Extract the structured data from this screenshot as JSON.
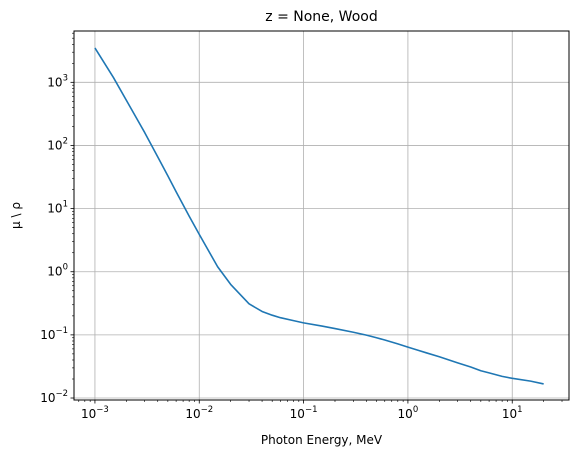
{
  "chart_data": {
    "type": "line",
    "title": "z = None, Wood",
    "xlabel": "Photon Energy, MeV",
    "ylabel": "μ \\ ρ",
    "xscale": "log",
    "yscale": "log",
    "xlim": [
      0.00063,
      35
    ],
    "ylim": [
      0.0093,
      6500
    ],
    "grid": true,
    "x_ticks": [
      {
        "value": 0.001,
        "mantissa": "10",
        "exp": "−3"
      },
      {
        "value": 0.01,
        "mantissa": "10",
        "exp": "−2"
      },
      {
        "value": 0.1,
        "mantissa": "10",
        "exp": "−1"
      },
      {
        "value": 1,
        "mantissa": "10",
        "exp": "0"
      },
      {
        "value": 10,
        "mantissa": "10",
        "exp": "1"
      }
    ],
    "y_ticks": [
      {
        "value": 0.01,
        "mantissa": "10",
        "exp": "−2"
      },
      {
        "value": 0.1,
        "mantissa": "10",
        "exp": "−1"
      },
      {
        "value": 1,
        "mantissa": "10",
        "exp": "0"
      },
      {
        "value": 10,
        "mantissa": "10",
        "exp": "1"
      },
      {
        "value": 100,
        "mantissa": "10",
        "exp": "2"
      },
      {
        "value": 1000,
        "mantissa": "10",
        "exp": "3"
      }
    ],
    "series": [
      {
        "color": "#1f77b4",
        "x": [
          0.001,
          0.0015,
          0.002,
          0.003,
          0.004,
          0.005,
          0.006,
          0.008,
          0.01,
          0.015,
          0.02,
          0.03,
          0.04,
          0.05,
          0.06,
          0.08,
          0.1,
          0.15,
          0.2,
          0.3,
          0.4,
          0.5,
          0.6,
          0.8,
          1,
          1.25,
          1.5,
          2,
          3,
          4,
          5,
          6,
          8,
          10,
          15,
          20
        ],
        "y": [
          3500,
          1200,
          520,
          160,
          66,
          33,
          18.5,
          7.6,
          3.9,
          1.2,
          0.63,
          0.31,
          0.235,
          0.205,
          0.187,
          0.168,
          0.155,
          0.138,
          0.126,
          0.11,
          0.099,
          0.09,
          0.083,
          0.072,
          0.064,
          0.057,
          0.052,
          0.045,
          0.036,
          0.031,
          0.027,
          0.025,
          0.022,
          0.0205,
          0.0185,
          0.0167
        ]
      }
    ]
  }
}
